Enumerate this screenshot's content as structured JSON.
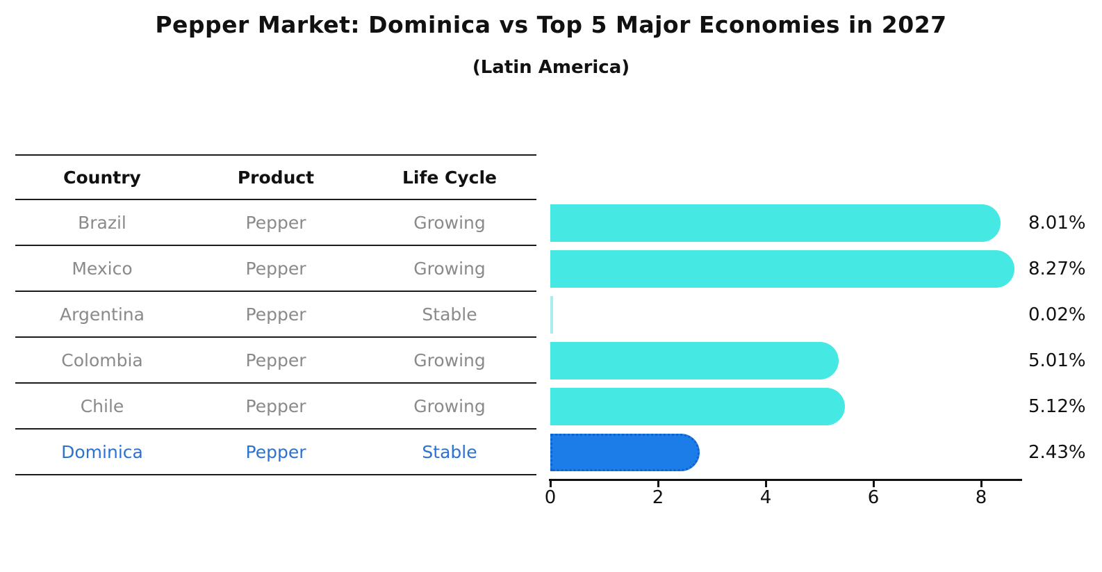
{
  "title": "Pepper Market: Dominica vs Top 5 Major Economies in 2027",
  "subtitle": "(Latin America)",
  "table": {
    "headers": [
      "Country",
      "Product",
      "Life Cycle"
    ],
    "rows": [
      {
        "country": "Brazil",
        "product": "Pepper",
        "life_cycle": "Growing",
        "highlight": false
      },
      {
        "country": "Mexico",
        "product": "Pepper",
        "life_cycle": "Growing",
        "highlight": false
      },
      {
        "country": "Argentina",
        "product": "Pepper",
        "life_cycle": "Stable",
        "highlight": false
      },
      {
        "country": "Colombia",
        "product": "Pepper",
        "life_cycle": "Growing",
        "highlight": false
      },
      {
        "country": "Chile",
        "product": "Pepper",
        "life_cycle": "Growing",
        "highlight": false
      },
      {
        "country": "Dominica",
        "product": "Pepper",
        "life_cycle": "Stable",
        "highlight": true
      }
    ]
  },
  "chart_data": {
    "type": "bar",
    "orientation": "horizontal",
    "title": "Pepper Market: Dominica vs Top 5 Major Economies in 2027",
    "subtitle": "(Latin America)",
    "categories": [
      "Brazil",
      "Mexico",
      "Argentina",
      "Colombia",
      "Chile",
      "Dominica"
    ],
    "values": [
      8.01,
      8.27,
      0.02,
      5.01,
      5.12,
      2.43
    ],
    "value_labels": [
      "8.01%",
      "8.27%",
      "0.02%",
      "5.01%",
      "5.12%",
      "2.43%"
    ],
    "x_ticks": [
      0,
      2,
      4,
      6,
      8
    ],
    "xlim": [
      0,
      8.75
    ],
    "grid": false,
    "legend": "none",
    "highlight_index": 5,
    "colors": {
      "bar": "#45e8e2",
      "highlight_bar": "#1c7ce8",
      "highlight_border": "#0f63cc",
      "highlight_text": "#2b72d3",
      "row_text": "#8a8a8a",
      "axis": "#111111"
    }
  }
}
